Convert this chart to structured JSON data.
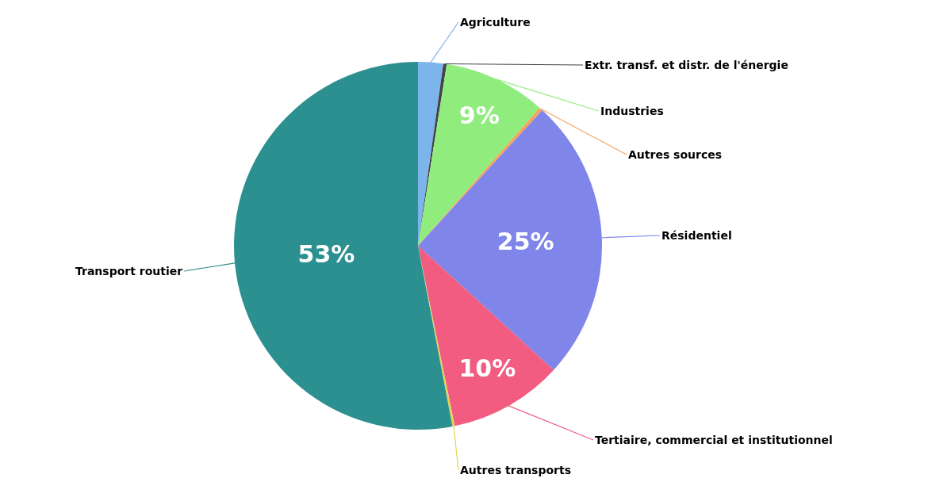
{
  "chart_data": {
    "type": "pie",
    "categories": [
      "Agriculture",
      "Extr. transf. et distr. de l'énergie",
      "Industries",
      "Autres sources",
      "Résidentiel",
      "Tertiaire, commercial et institutionnel",
      "Autres transports",
      "Transport routier"
    ],
    "values": [
      2.2,
      0.3,
      9,
      0.3,
      25,
      10,
      0.2,
      53
    ],
    "value_labels": [
      null,
      null,
      "9%",
      null,
      "25%",
      "10%",
      null,
      "53%"
    ],
    "colors": [
      "#7cb5ec",
      "#434348",
      "#90ed7d",
      "#f7a35c",
      "#8085e9",
      "#f15c80",
      "#e4d354",
      "#2b908f"
    ],
    "legend": false
  }
}
